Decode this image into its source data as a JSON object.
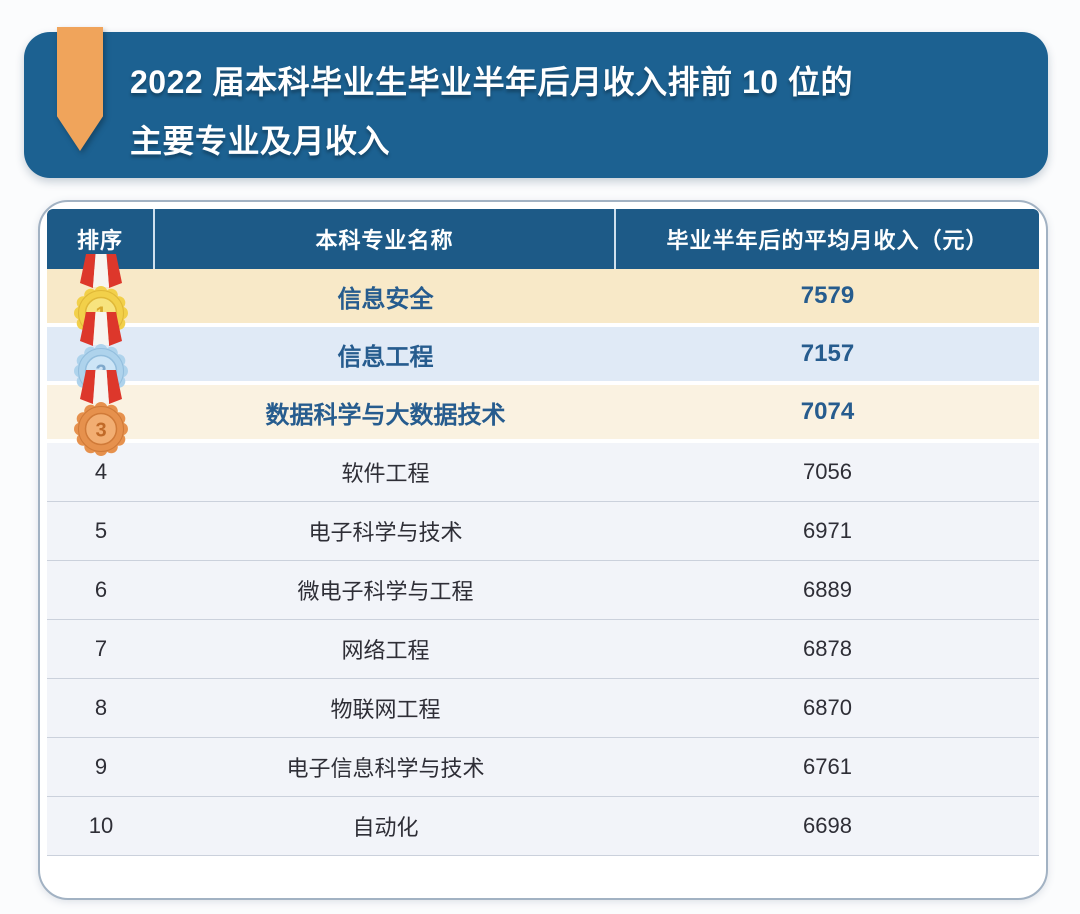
{
  "banner": {
    "title_line1": "2022 届本科毕业生毕业半年后月收入排前 10 位的",
    "title_line2": "主要专业及月收入",
    "bg_color": "#1c6191",
    "ribbon_color": "#f0a45b"
  },
  "table": {
    "header_bg": "#1d5a87",
    "top3_text_color": "#265c8e",
    "headers": [
      "排序",
      "本科专业名称",
      "毕业半年后的平均月收入（元）"
    ],
    "rows": [
      {
        "rank": "1",
        "medal": "gold",
        "major": "信息安全",
        "income": "7579",
        "bg": "#f8e9c8"
      },
      {
        "rank": "2",
        "medal": "silver",
        "major": "信息工程",
        "income": "7157",
        "bg": "#e0eaf6"
      },
      {
        "rank": "3",
        "medal": "bronze",
        "major": "数据科学与大数据技术",
        "income": "7074",
        "bg": "#faf2e1"
      },
      {
        "rank": "4",
        "major": "软件工程",
        "income": "7056"
      },
      {
        "rank": "5",
        "major": "电子科学与技术",
        "income": "6971"
      },
      {
        "rank": "6",
        "major": "微电子科学与工程",
        "income": "6889"
      },
      {
        "rank": "7",
        "major": "网络工程",
        "income": "6878"
      },
      {
        "rank": "8",
        "major": "物联网工程",
        "income": "6870"
      },
      {
        "rank": "9",
        "major": "电子信息科学与技术",
        "income": "6761"
      },
      {
        "rank": "10",
        "major": "自动化",
        "income": "6698"
      }
    ]
  },
  "medals": {
    "gold": {
      "base": "#f2d04a",
      "inner": "#f7e37e",
      "edge": "#e0b838",
      "num": "#d8a92c",
      "ribbon": "#dd372b",
      "stripe": "#f7f5f0"
    },
    "silver": {
      "base": "#aed3ec",
      "inner": "#cde5f6",
      "edge": "#93bedd",
      "num": "#7fa9cc",
      "ribbon": "#dd372b",
      "stripe": "#f7f5f0"
    },
    "bronze": {
      "base": "#e6914d",
      "inner": "#f2ae72",
      "edge": "#d07a38",
      "num": "#c06a28",
      "ribbon": "#dd372b",
      "stripe": "#f7f5f0"
    }
  },
  "chart_data": {
    "type": "table",
    "title": "2022 届本科毕业生毕业半年后月收入排前 10 位的主要专业及月收入",
    "columns": [
      "排序",
      "本科专业名称",
      "毕业半年后的平均月收入（元）"
    ],
    "rows": [
      [
        1,
        "信息安全",
        7579
      ],
      [
        2,
        "信息工程",
        7157
      ],
      [
        3,
        "数据科学与大数据技术",
        7074
      ],
      [
        4,
        "软件工程",
        7056
      ],
      [
        5,
        "电子科学与技术",
        6971
      ],
      [
        6,
        "微电子科学与工程",
        6889
      ],
      [
        7,
        "网络工程",
        6878
      ],
      [
        8,
        "物联网工程",
        6870
      ],
      [
        9,
        "电子信息科学与技术",
        6761
      ],
      [
        10,
        "自动化",
        6698
      ]
    ]
  }
}
